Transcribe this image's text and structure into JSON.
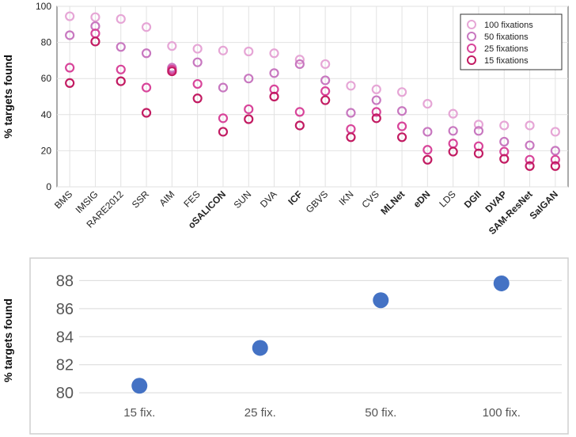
{
  "chart_data": [
    {
      "type": "scatter",
      "ylabel": "% targets found",
      "ylim": [
        0,
        100
      ],
      "yticks": [
        "0",
        "20",
        "40",
        "60",
        "80",
        "100"
      ],
      "legend_position": "top-right",
      "categories": [
        "BMS",
        "IMSIG",
        "RARE2012",
        "SSR",
        "AIM",
        "FES",
        "oSALICON",
        "SUN",
        "DVA",
        "ICF",
        "GBVS",
        "IKN",
        "CVS",
        "MLNet",
        "eDN",
        "LDS",
        "DGII",
        "DVAP",
        "SAM-ResNet",
        "SalGAN"
      ],
      "bold_categories": [
        "oSALICON",
        "ICF",
        "MLNet",
        "eDN",
        "DGII",
        "DVAP",
        "SAM-ResNet",
        "SalGAN"
      ],
      "series": [
        {
          "name": "100 fixations",
          "color": "#e6a6d6",
          "values": [
            94.5,
            94,
            93,
            88.5,
            78,
            76.5,
            75.5,
            75,
            74,
            70.5,
            68,
            56,
            54,
            52.5,
            46,
            40.5,
            34.5,
            34,
            34,
            30.5
          ]
        },
        {
          "name": "50 fixations",
          "color": "#c878c0",
          "values": [
            84,
            89,
            77.5,
            74,
            66,
            69,
            55,
            60,
            63,
            68,
            59,
            41,
            48,
            42,
            30.5,
            31,
            31,
            25,
            23,
            20
          ]
        },
        {
          "name": "25 fixations",
          "color": "#d8459a",
          "values": [
            66,
            85,
            65,
            55,
            65,
            57,
            38,
            43,
            54,
            41.5,
            53,
            32,
            41.5,
            33.5,
            20.5,
            24,
            22.5,
            19.5,
            15,
            15
          ]
        },
        {
          "name": "15 fixations",
          "color": "#c21b62",
          "values": [
            57.5,
            80.5,
            58.5,
            41,
            64,
            49,
            30.5,
            37.5,
            50,
            34,
            48,
            27.5,
            38,
            27.5,
            15,
            19.5,
            18.5,
            15.5,
            11.5,
            11.5
          ]
        }
      ]
    },
    {
      "type": "scatter",
      "ylabel": "% targets found",
      "ylim": [
        79.5,
        88.7
      ],
      "yticks": [
        "80",
        "82",
        "84",
        "86",
        "88"
      ],
      "categories": [
        "15 fix.",
        "25 fix.",
        "50 fix.",
        "100 fix."
      ],
      "values": [
        80.5,
        83.2,
        86.6,
        87.8
      ],
      "color": "#4472c4"
    }
  ]
}
